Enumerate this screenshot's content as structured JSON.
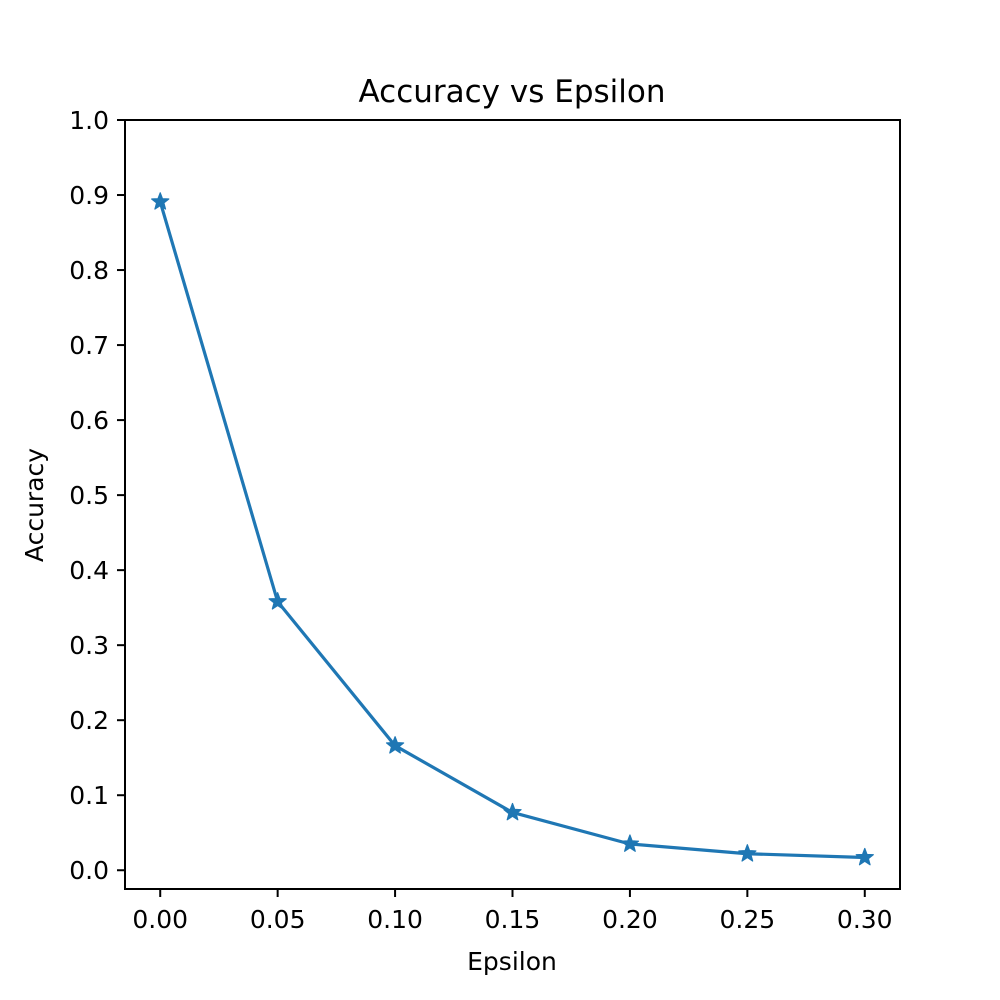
{
  "chart_data": {
    "type": "line",
    "title": "Accuracy vs Epsilon",
    "xlabel": "Epsilon",
    "ylabel": "Accuracy",
    "x": [
      0.0,
      0.05,
      0.1,
      0.15,
      0.2,
      0.25,
      0.3
    ],
    "series": [
      {
        "values": [
          0.891,
          0.358,
          0.166,
          0.077,
          0.035,
          0.022,
          0.017
        ],
        "color": "#1f77b4",
        "marker": "star"
      }
    ],
    "xlim": [
      -0.015,
      0.315
    ],
    "ylim": [
      -0.025,
      1.0
    ],
    "xticks": [
      0.0,
      0.05,
      0.1,
      0.15,
      0.2,
      0.25,
      0.3
    ],
    "xtick_labels": [
      "0.00",
      "0.05",
      "0.10",
      "0.15",
      "0.20",
      "0.25",
      "0.30"
    ],
    "yticks": [
      0.0,
      0.1,
      0.2,
      0.3,
      0.4,
      0.5,
      0.6,
      0.7,
      0.8,
      0.9,
      1.0
    ],
    "ytick_labels": [
      "0.0",
      "0.1",
      "0.2",
      "0.3",
      "0.4",
      "0.5",
      "0.6",
      "0.7",
      "0.8",
      "0.9",
      "1.0"
    ],
    "grid": false
  }
}
